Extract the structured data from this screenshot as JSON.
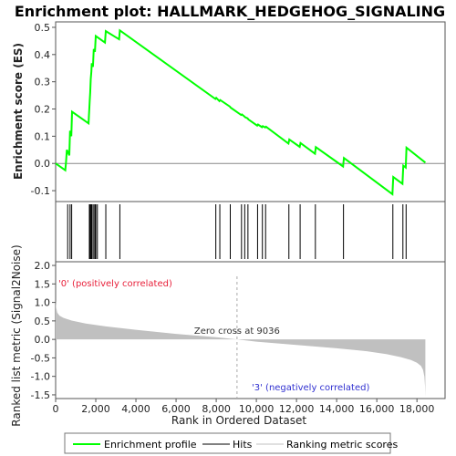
{
  "chart_data": {
    "type": "line",
    "title": "Enrichment plot: HALLMARK_HEDGEHOG_SIGNALING",
    "es_panel": {
      "ylabel": "Enrichment score (ES)",
      "ylim": [
        -0.14,
        0.52
      ],
      "yticks": [
        "0.5",
        "0.4",
        "0.3",
        "0.2",
        "0.1",
        "0.0",
        "-0.1"
      ],
      "ytick_values": [
        0.5,
        0.4,
        0.3,
        0.2,
        0.1,
        0.0,
        -0.1
      ],
      "series": [
        {
          "name": "Enrichment profile",
          "color": "#00ff00",
          "x": [
            0,
            480,
            520,
            560,
            680,
            720,
            780,
            820,
            1640,
            1660,
            1680,
            1700,
            1720,
            1750,
            1780,
            1800,
            1860,
            1900,
            1960,
            2000,
            2460,
            2500,
            3160,
            3200,
            7960,
            8000,
            8160,
            8200,
            8680,
            8720,
            9240,
            9280,
            9400,
            9440,
            9560,
            9600,
            10040,
            10080,
            10280,
            10320,
            10440,
            10480,
            11600,
            11640,
            12160,
            12200,
            12920,
            12960,
            14320,
            14360,
            16780,
            16820,
            17280,
            17320,
            17440,
            17480,
            18420
          ],
          "y": [
            0.0,
            -0.025,
            0.005,
            0.05,
            0.03,
            0.12,
            0.1,
            0.19,
            0.147,
            0.175,
            0.205,
            0.232,
            0.26,
            0.31,
            0.338,
            0.368,
            0.355,
            0.42,
            0.41,
            0.468,
            0.444,
            0.486,
            0.456,
            0.489,
            0.237,
            0.241,
            0.229,
            0.233,
            0.209,
            0.205,
            0.178,
            0.18,
            0.173,
            0.17,
            0.166,
            0.162,
            0.139,
            0.143,
            0.133,
            0.137,
            0.132,
            0.135,
            0.073,
            0.088,
            0.061,
            0.075,
            0.036,
            0.06,
            -0.011,
            0.02,
            -0.113,
            -0.05,
            -0.075,
            -0.008,
            -0.015,
            0.058,
            0.003
          ]
        }
      ]
    },
    "hits_panel": {
      "hit_positions": [
        600,
        720,
        800,
        1680,
        1720,
        1760,
        1790,
        1820,
        1900,
        1960,
        2000,
        2080,
        2500,
        3200,
        7980,
        8180,
        8700,
        9260,
        9420,
        9580,
        10060,
        10300,
        10460,
        11620,
        12180,
        12940,
        14340,
        16800,
        17300,
        17460
      ]
    },
    "metric_panel": {
      "ylabel": "Ranked list metric (Signal2Noise)",
      "ylim": [
        -1.6,
        2.1
      ],
      "yticks": [
        "2.0",
        "1.5",
        "1.0",
        "0.5",
        "0.0",
        "-0.5",
        "-1.0",
        "-1.5"
      ],
      "ytick_values": [
        2.0,
        1.5,
        1.0,
        0.5,
        0.0,
        -0.5,
        -1.0,
        -1.5
      ],
      "metric_curve": {
        "x": [
          0,
          30,
          80,
          200,
          400,
          800,
          1500,
          2500,
          4000,
          6000,
          8000,
          9036,
          10000,
          12000,
          14000,
          15500,
          16500,
          17200,
          17700,
          18000,
          18200,
          18300,
          18370,
          18400,
          18420
        ],
        "y": [
          1.05,
          0.85,
          0.72,
          0.64,
          0.58,
          0.51,
          0.43,
          0.35,
          0.26,
          0.15,
          0.06,
          0.0,
          -0.06,
          -0.15,
          -0.24,
          -0.32,
          -0.4,
          -0.48,
          -0.56,
          -0.63,
          -0.72,
          -0.82,
          -1.0,
          -1.25,
          -1.55
        ]
      },
      "positive_label": "'0' (positively correlated)",
      "negative_label": "'3' (negatively correlated)",
      "zero_cross_label": "Zero cross at 9036",
      "zero_cross": 9036
    },
    "x_axis": {
      "label": "Rank in Ordered Dataset",
      "xlim": [
        0,
        19400
      ],
      "ticks": [
        "0",
        "2,000",
        "4,000",
        "6,000",
        "8,000",
        "10,000",
        "12,000",
        "14,000",
        "16,000",
        "18,000"
      ],
      "tick_values": [
        0,
        2000,
        4000,
        6000,
        8000,
        10000,
        12000,
        14000,
        16000,
        18000
      ],
      "max_rank": 18420
    },
    "colorbar": {
      "segments": [
        {
          "to": 3700,
          "color": "#e8203a"
        },
        {
          "to": 5300,
          "color": "#f25a6e"
        },
        {
          "to": 7100,
          "color": "#f795a4"
        },
        {
          "to": 8700,
          "color": "#f7c4e8"
        },
        {
          "to": 9200,
          "color": "#f1e4f2"
        },
        {
          "to": 11000,
          "color": "#e4e2fc"
        },
        {
          "to": 12900,
          "color": "#c7c6f6"
        },
        {
          "to": 14400,
          "color": "#8f8cf0"
        },
        {
          "to": 17300,
          "color": "#4f4ad8"
        },
        {
          "to": 18420,
          "color": "#1f14c4"
        }
      ]
    },
    "legend": [
      {
        "label": "Enrichment profile",
        "color": "#00ff00"
      },
      {
        "label": "Hits",
        "color": "#000000"
      },
      {
        "label": "Ranking metric scores",
        "color": "#c0c0c0"
      }
    ]
  }
}
